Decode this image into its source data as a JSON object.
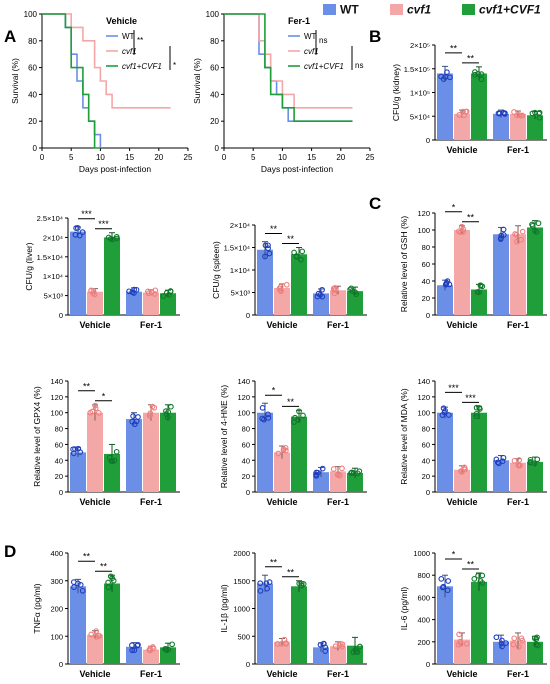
{
  "legend": {
    "items": [
      {
        "label": "WT",
        "color": "#6b8fe6"
      },
      {
        "label": "cvf1",
        "color": "#f4a7a7",
        "italic": true
      },
      {
        "label": "cvf1+CVF1",
        "color": "#1f9e3a",
        "italic": true
      }
    ]
  },
  "panel_letters": [
    "A",
    "B",
    "C",
    "D"
  ],
  "chart_data": [
    {
      "id": "surv-vehicle",
      "type": "line",
      "subtitle": "Vehicle",
      "xlabel": "Days post-infection",
      "ylabel": "Survival (%)",
      "xlim": [
        0,
        25
      ],
      "ylim": [
        0,
        100
      ],
      "xticks": [
        0,
        5,
        10,
        15,
        20,
        25
      ],
      "yticks": [
        0,
        20,
        40,
        60,
        80,
        100
      ],
      "series": [
        {
          "name": "WT",
          "color": "#6b8fe6",
          "steps": [
            [
              0,
              100
            ],
            [
              4,
              100
            ],
            [
              4,
              90
            ],
            [
              5,
              90
            ],
            [
              5,
              70
            ],
            [
              6,
              70
            ],
            [
              6,
              50
            ],
            [
              7,
              50
            ],
            [
              7,
              30
            ],
            [
              8,
              30
            ],
            [
              8,
              20
            ],
            [
              9,
              20
            ],
            [
              9,
              10
            ],
            [
              10,
              10
            ],
            [
              10,
              0
            ]
          ]
        },
        {
          "name": "cvf1",
          "color": "#f4a7a7",
          "steps": [
            [
              0,
              100
            ],
            [
              5,
              100
            ],
            [
              5,
              90
            ],
            [
              7,
              90
            ],
            [
              7,
              80
            ],
            [
              9,
              80
            ],
            [
              9,
              60
            ],
            [
              10,
              60
            ],
            [
              10,
              50
            ],
            [
              11,
              50
            ],
            [
              11,
              40
            ],
            [
              12,
              40
            ],
            [
              12,
              30
            ],
            [
              22,
              30
            ]
          ]
        },
        {
          "name": "cvf1+CVF1",
          "color": "#1f9e3a",
          "steps": [
            [
              0,
              100
            ],
            [
              4,
              100
            ],
            [
              4,
              90
            ],
            [
              5,
              90
            ],
            [
              5,
              60
            ],
            [
              7,
              60
            ],
            [
              7,
              40
            ],
            [
              8,
              40
            ],
            [
              8,
              20
            ],
            [
              9,
              20
            ],
            [
              9,
              0
            ],
            [
              10,
              0
            ]
          ]
        }
      ],
      "annotations": [
        "**",
        "*"
      ]
    },
    {
      "id": "surv-fer1",
      "type": "line",
      "subtitle": "Fer-1",
      "xlabel": "Days post-infection",
      "ylabel": "Survival (%)",
      "xlim": [
        0,
        25
      ],
      "ylim": [
        0,
        100
      ],
      "xticks": [
        0,
        5,
        10,
        15,
        20,
        25
      ],
      "yticks": [
        0,
        20,
        40,
        60,
        80,
        100
      ],
      "series": [
        {
          "name": "WT",
          "color": "#6b8fe6",
          "steps": [
            [
              0,
              100
            ],
            [
              6,
              100
            ],
            [
              6,
              70
            ],
            [
              7,
              70
            ],
            [
              7,
              60
            ],
            [
              8,
              60
            ],
            [
              8,
              50
            ],
            [
              9,
              50
            ],
            [
              9,
              40
            ],
            [
              10,
              40
            ],
            [
              10,
              30
            ],
            [
              11,
              30
            ],
            [
              11,
              20
            ],
            [
              22,
              20
            ]
          ]
        },
        {
          "name": "cvf1",
          "color": "#f4a7a7",
          "steps": [
            [
              0,
              100
            ],
            [
              6,
              100
            ],
            [
              6,
              80
            ],
            [
              7,
              80
            ],
            [
              7,
              70
            ],
            [
              8,
              70
            ],
            [
              8,
              50
            ],
            [
              10,
              50
            ],
            [
              10,
              40
            ],
            [
              12,
              40
            ],
            [
              12,
              30
            ],
            [
              22,
              30
            ]
          ]
        },
        {
          "name": "cvf1+CVF1",
          "color": "#1f9e3a",
          "steps": [
            [
              0,
              100
            ],
            [
              7,
              100
            ],
            [
              7,
              60
            ],
            [
              8,
              60
            ],
            [
              8,
              40
            ],
            [
              10,
              40
            ],
            [
              10,
              30
            ],
            [
              12,
              30
            ],
            [
              12,
              20
            ],
            [
              22,
              20
            ]
          ]
        }
      ],
      "annotations": [
        "ns",
        "ns"
      ]
    },
    {
      "id": "cfu-kidney",
      "type": "bar",
      "ylabel": "CFU/g (kidney)",
      "categories": [
        "Vehicle",
        "Fer-1"
      ],
      "ylim": [
        0,
        200000
      ],
      "ytick_labels": [
        "0",
        "5×10⁴",
        "1×10⁵",
        "1.5×10⁵",
        "2×10⁵"
      ],
      "series": [
        {
          "name": "WT",
          "values": [
            140000,
            55000
          ],
          "errors": [
            15000,
            8000
          ]
        },
        {
          "name": "cvf1",
          "values": [
            55000,
            55000
          ],
          "errors": [
            8000,
            6000
          ]
        },
        {
          "name": "cvf1+CVF1",
          "values": [
            140000,
            52000
          ],
          "errors": [
            14000,
            8000
          ]
        }
      ],
      "significance": [
        "**",
        "**"
      ]
    },
    {
      "id": "cfu-liver",
      "type": "bar",
      "ylabel": "CFU/g (liver)",
      "categories": [
        "Vehicle",
        "Fer-1"
      ],
      "ylim": [
        0,
        25000
      ],
      "ytick_labels": [
        "0",
        "5×10³",
        "1×10⁴",
        "1.5×10⁴",
        "2×10⁴",
        "2.5×10⁴"
      ],
      "series": [
        {
          "name": "WT",
          "values": [
            21500,
            6000
          ],
          "errors": [
            1200,
            1000
          ]
        },
        {
          "name": "cvf1",
          "values": [
            6000,
            5800
          ],
          "errors": [
            800,
            700
          ]
        },
        {
          "name": "cvf1+CVF1",
          "values": [
            20000,
            5600
          ],
          "errors": [
            1200,
            800
          ]
        }
      ],
      "significance": [
        "***",
        "***"
      ]
    },
    {
      "id": "cfu-spleen",
      "type": "bar",
      "ylabel": "CFU/g (spleen)",
      "categories": [
        "Vehicle",
        "Fer-1"
      ],
      "ylim": [
        0,
        20000
      ],
      "ytick_labels": [
        "0",
        "5×10³",
        "1×10⁴",
        "1.5×10⁴",
        "2×10⁴"
      ],
      "series": [
        {
          "name": "WT",
          "values": [
            14500,
            4800
          ],
          "errors": [
            1800,
            1000
          ]
        },
        {
          "name": "cvf1",
          "values": [
            6000,
            5500
          ],
          "errors": [
            900,
            900
          ]
        },
        {
          "name": "cvf1+CVF1",
          "values": [
            13500,
            5300
          ],
          "errors": [
            1500,
            900
          ]
        }
      ],
      "significance": [
        "**",
        "**"
      ]
    },
    {
      "id": "gsh",
      "type": "bar",
      "ylabel": "Relative level of GSH (%)",
      "categories": [
        "Vehicle",
        "Fer-1"
      ],
      "ylim": [
        0,
        120
      ],
      "yticks": [
        0,
        20,
        40,
        60,
        80,
        100,
        120
      ],
      "series": [
        {
          "name": "WT",
          "values": [
            35,
            95
          ],
          "errors": [
            6,
            8
          ]
        },
        {
          "name": "cvf1",
          "values": [
            100,
            95
          ],
          "errors": [
            5,
            10
          ]
        },
        {
          "name": "cvf1+CVF1",
          "values": [
            30,
            103
          ],
          "errors": [
            6,
            8
          ]
        }
      ],
      "significance": [
        "*",
        "**"
      ]
    },
    {
      "id": "gpx4",
      "type": "bar",
      "ylabel": "Relative level of GPX4 (%)",
      "categories": [
        "Vehicle",
        "Fer-1"
      ],
      "ylim": [
        0,
        140
      ],
      "yticks": [
        0,
        20,
        40,
        60,
        80,
        100,
        120,
        140
      ],
      "series": [
        {
          "name": "WT",
          "values": [
            50,
            92
          ],
          "errors": [
            6,
            8
          ]
        },
        {
          "name": "cvf1",
          "values": [
            100,
            100
          ],
          "errors": [
            10,
            10
          ]
        },
        {
          "name": "cvf1+CVF1",
          "values": [
            48,
            100
          ],
          "errors": [
            12,
            10
          ]
        }
      ],
      "significance": [
        "**",
        "*"
      ]
    },
    {
      "id": "hne",
      "type": "bar",
      "ylabel": "Relative level of 4-HNE (%)",
      "categories": [
        "Vehicle",
        "Fer-1"
      ],
      "ylim": [
        0,
        140
      ],
      "yticks": [
        0,
        20,
        40,
        60,
        80,
        100,
        120,
        140
      ],
      "series": [
        {
          "name": "WT",
          "values": [
            100,
            25
          ],
          "errors": [
            12,
            6
          ]
        },
        {
          "name": "cvf1",
          "values": [
            50,
            26
          ],
          "errors": [
            8,
            6
          ]
        },
        {
          "name": "cvf1+CVF1",
          "values": [
            95,
            24
          ],
          "errors": [
            8,
            6
          ]
        }
      ],
      "significance": [
        "*",
        "**"
      ]
    },
    {
      "id": "mda",
      "type": "bar",
      "ylabel": "Relative level of MDA (%)",
      "categories": [
        "Vehicle",
        "Fer-1"
      ],
      "ylim": [
        0,
        140
      ],
      "yticks": [
        0,
        20,
        40,
        60,
        80,
        100,
        120,
        140
      ],
      "series": [
        {
          "name": "WT",
          "values": [
            100,
            40
          ],
          "errors": [
            7,
            6
          ]
        },
        {
          "name": "cvf1",
          "values": [
            28,
            37
          ],
          "errors": [
            5,
            5
          ]
        },
        {
          "name": "cvf1+CVF1",
          "values": [
            100,
            38
          ],
          "errors": [
            8,
            6
          ]
        }
      ],
      "significance": [
        "***",
        "***"
      ]
    },
    {
      "id": "tnfa",
      "type": "bar",
      "ylabel": "TNFα (pg/ml)",
      "categories": [
        "Vehicle",
        "Fer-1"
      ],
      "ylim": [
        0,
        400
      ],
      "yticks": [
        0,
        100,
        200,
        300,
        400
      ],
      "series": [
        {
          "name": "WT",
          "values": [
            280,
            62
          ],
          "errors": [
            25,
            15
          ]
        },
        {
          "name": "cvf1",
          "values": [
            105,
            52
          ],
          "errors": [
            15,
            12
          ]
        },
        {
          "name": "cvf1+CVF1",
          "values": [
            290,
            60
          ],
          "errors": [
            30,
            15
          ]
        }
      ],
      "significance": [
        "**",
        "**"
      ]
    },
    {
      "id": "il1b",
      "type": "bar",
      "ylabel": "IL-1β (pg/ml)",
      "categories": [
        "Vehicle",
        "Fer-1"
      ],
      "ylim": [
        0,
        2000
      ],
      "yticks": [
        0,
        500,
        1000,
        1500,
        2000
      ],
      "series": [
        {
          "name": "WT",
          "values": [
            1450,
            300
          ],
          "errors": [
            150,
            80
          ]
        },
        {
          "name": "cvf1",
          "values": [
            400,
            320
          ],
          "errors": [
            60,
            80
          ]
        },
        {
          "name": "cvf1+CVF1",
          "values": [
            1400,
            330
          ],
          "errors": [
            100,
            150
          ]
        }
      ],
      "significance": [
        "**",
        "**"
      ]
    },
    {
      "id": "il6",
      "type": "bar",
      "ylabel": "IL-6 (pg/ml)",
      "categories": [
        "Vehicle",
        "Fer-1"
      ],
      "ylim": [
        0,
        1000
      ],
      "yticks": [
        0,
        200,
        400,
        600,
        800,
        1000
      ],
      "series": [
        {
          "name": "WT",
          "values": [
            700,
            200
          ],
          "errors": [
            100,
            60
          ]
        },
        {
          "name": "cvf1",
          "values": [
            220,
            210
          ],
          "errors": [
            60,
            70
          ]
        },
        {
          "name": "cvf1+CVF1",
          "values": [
            740,
            200
          ],
          "errors": [
            80,
            50
          ]
        }
      ],
      "significance": [
        "*",
        "**"
      ]
    }
  ]
}
